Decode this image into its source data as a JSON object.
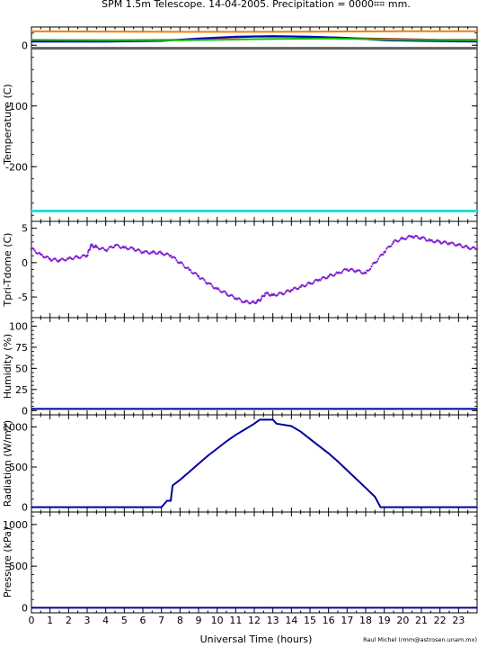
{
  "title": "SPM 1.5m Telescope. 14-04-2005. Precipitation = 0000⌗⌗ mm.",
  "xlabel": "Universal Time (hours)",
  "credit": "Raul Michel (rmm@astrosen.unam.mx)",
  "colors": {
    "axes": "#000000",
    "orange": "#f08000",
    "red": "#d01010",
    "green": "#10c010",
    "blue": "#0000c0",
    "navy": "#0000a0",
    "gray": "#606060",
    "cyan": "#20e0e0",
    "purple": "#8020d0"
  },
  "chart_data": [
    {
      "type": "line",
      "ylabel": "Temperature (C)",
      "ylim": [
        -290,
        30
      ],
      "xlim": [
        0,
        24
      ],
      "yticks": [
        0,
        -100,
        -200
      ],
      "series": [
        {
          "color": "orange",
          "x": [
            0,
            4,
            8,
            12,
            16,
            20,
            24
          ],
          "y": [
            23,
            22.5,
            22,
            22,
            22.5,
            23,
            23
          ]
        },
        {
          "color": "red",
          "x": [
            0,
            4,
            8,
            10,
            12,
            14,
            16,
            18,
            20,
            22,
            24
          ],
          "y": [
            8,
            8,
            9,
            12,
            14,
            14,
            13,
            11,
            10,
            9,
            9
          ]
        },
        {
          "color": "blue",
          "x": [
            0,
            4,
            7,
            9,
            11,
            13,
            15,
            17,
            19,
            21,
            24
          ],
          "y": [
            6,
            6,
            7,
            11,
            14,
            15,
            14,
            12,
            8,
            7,
            6
          ]
        },
        {
          "color": "green",
          "x": [
            0,
            4,
            8,
            12,
            16,
            20,
            24
          ],
          "y": [
            9,
            8,
            8,
            10,
            11,
            9,
            8
          ]
        },
        {
          "color": "gray",
          "x": [
            0,
            24
          ],
          "y": [
            -5,
            -5
          ]
        },
        {
          "color": "cyan",
          "x": [
            0,
            24
          ],
          "y": [
            -273,
            -273
          ]
        }
      ]
    },
    {
      "type": "scatter",
      "ylabel": "Tpri-Tdome (C)",
      "ylim": [
        -8,
        6
      ],
      "xlim": [
        0,
        24
      ],
      "yticks": [
        5,
        0,
        -5
      ],
      "series": [
        {
          "color": "purple",
          "x": [
            0,
            0.5,
            1,
            1.5,
            2,
            2.5,
            3,
            3.2,
            3.5,
            4,
            4.5,
            5,
            5.5,
            6,
            6.5,
            7,
            7.5,
            8,
            8.5,
            9,
            9.5,
            10,
            10.5,
            11,
            11.5,
            12,
            12.3,
            12.6,
            13,
            13.5,
            14,
            14.5,
            15,
            15.5,
            16,
            16.5,
            17,
            17.5,
            18,
            18.5,
            19,
            19.5,
            20,
            20.5,
            21,
            21.5,
            22,
            22.5,
            23,
            23.5,
            24
          ],
          "y": [
            2,
            1.2,
            0.5,
            0.3,
            0.6,
            0.8,
            1.0,
            2.5,
            2.3,
            1.8,
            2.5,
            2.2,
            2.0,
            1.5,
            1.5,
            1.4,
            1.0,
            0.0,
            -1.0,
            -2.0,
            -3.0,
            -3.8,
            -4.5,
            -5.2,
            -5.7,
            -5.8,
            -5.5,
            -4.5,
            -4.7,
            -4.5,
            -4.0,
            -3.5,
            -3.0,
            -2.5,
            -2.0,
            -1.5,
            -1.0,
            -1.2,
            -1.5,
            0.0,
            1.5,
            3.0,
            3.5,
            3.8,
            3.6,
            3.2,
            3.0,
            2.8,
            2.6,
            2.2,
            2.0
          ]
        }
      ]
    },
    {
      "type": "line",
      "ylabel": "Humidity (%)",
      "ylim": [
        -5,
        110
      ],
      "xlim": [
        0,
        24
      ],
      "yticks": [
        100,
        75,
        50,
        25,
        0
      ],
      "series": [
        {
          "color": "navy",
          "x": [
            0,
            6,
            12,
            18,
            24
          ],
          "y": [
            2,
            2,
            2,
            2,
            2
          ]
        }
      ]
    },
    {
      "type": "line",
      "ylabel": "Radiation (W/m2)",
      "ylim": [
        -60,
        1150
      ],
      "xlim": [
        0,
        24
      ],
      "yticks": [
        1000,
        500,
        0
      ],
      "series": [
        {
          "color": "navy",
          "x": [
            0,
            7.0,
            7.3,
            7.5,
            7.6,
            8,
            8.5,
            9,
            9.5,
            10,
            10.5,
            11,
            11.5,
            12,
            12.3,
            13,
            13.2,
            14,
            14.5,
            15,
            15.5,
            16,
            16.5,
            17,
            17.5,
            18,
            18.5,
            18.8,
            24
          ],
          "y": [
            0,
            0,
            80,
            80,
            270,
            340,
            440,
            540,
            640,
            730,
            820,
            900,
            970,
            1040,
            1090,
            1090,
            1040,
            1010,
            940,
            850,
            760,
            670,
            570,
            460,
            350,
            240,
            130,
            0,
            0
          ]
        }
      ]
    },
    {
      "type": "line",
      "ylabel": "Pressure (kPa)",
      "ylim": [
        -60,
        1150
      ],
      "xlim": [
        0,
        24
      ],
      "yticks": [
        1000,
        500,
        0
      ],
      "series": [
        {
          "color": "navy",
          "x": [
            0,
            24
          ],
          "y": [
            0,
            0
          ]
        }
      ]
    }
  ],
  "xticks": [
    "0",
    "1",
    "2",
    "3",
    "4",
    "5",
    "6",
    "7",
    "8",
    "9",
    "10",
    "11",
    "12",
    "13",
    "14",
    "15",
    "16",
    "17",
    "18",
    "19",
    "20",
    "21",
    "22",
    "23"
  ]
}
